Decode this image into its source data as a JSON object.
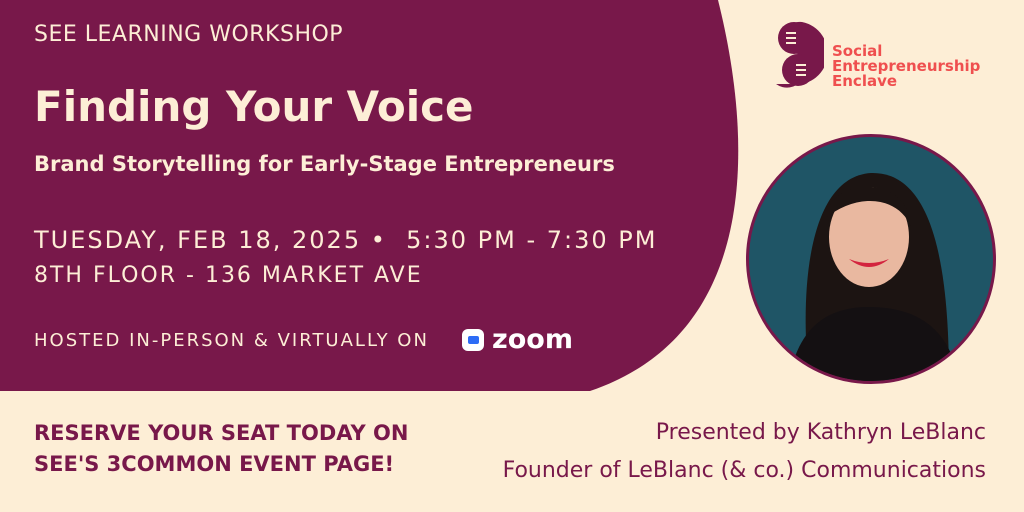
{
  "colors": {
    "brand_purple": "#78184a",
    "cream": "#fdeed6",
    "logo_red": "#ef4f4f",
    "zoom_blue": "#2d6cf6"
  },
  "event": {
    "kicker": "SEE LEARNING WORKSHOP",
    "title": "Finding Your Voice",
    "subtitle": "Brand Storytelling for Early-Stage Entrepreneurs",
    "date_time": "TUESDAY, FEB 18, 2025 •  5:30 PM - 7:30 PM",
    "location": "8TH FLOOR - 136 MARKET AVE",
    "hosted": "HOSTED IN-PERSON & VIRTUALLY ON",
    "platform": "zoom"
  },
  "logo": {
    "line1": "Social",
    "line2": "Entrepreneurship",
    "line3": "Enclave"
  },
  "cta": {
    "line1": "RESERVE YOUR SEAT TODAY ON",
    "line2": "SEE'S 3COMMON EVENT PAGE!"
  },
  "presenter": {
    "line1": "Presented by Kathryn LeBlanc",
    "line2": "Founder of LeBlanc (& co.) Communications"
  }
}
